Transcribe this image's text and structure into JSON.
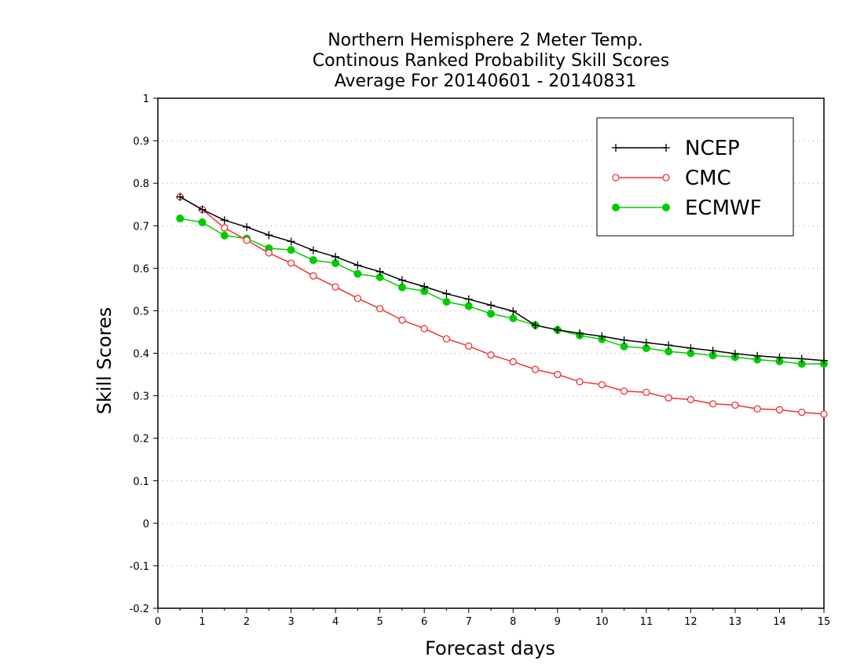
{
  "chart_data": {
    "type": "line",
    "title": [
      "Northern Hemisphere 2 Meter Temp.",
      "Continous Ranked Probability Skill Scores",
      "Average For 20140601 - 20140831"
    ],
    "xlabel": "Forecast days",
    "ylabel": "Skill Scores",
    "xlim": [
      0,
      15
    ],
    "ylim": [
      -0.2,
      1
    ],
    "xticks": [
      0,
      1,
      2,
      3,
      4,
      5,
      6,
      7,
      8,
      9,
      10,
      11,
      12,
      13,
      14,
      15
    ],
    "yticks": [
      -0.2,
      -0.1,
      0,
      0.1,
      0.2,
      0.3,
      0.4,
      0.5,
      0.6,
      0.7,
      0.8,
      0.9,
      1
    ],
    "ytick_labels": [
      "-0.2",
      "-0.1",
      "0",
      "0.1",
      "0.2",
      "0.3",
      "0.4",
      "0.5",
      "0.6",
      "0.7",
      "0.8",
      "0.9",
      "1"
    ],
    "grid": "horizontal dotted",
    "legend_position": "top-right",
    "x": [
      0.5,
      1,
      1.5,
      2,
      2.5,
      3,
      3.5,
      4,
      4.5,
      5,
      5.5,
      6,
      6.5,
      7,
      7.5,
      8,
      8.5,
      9,
      9.5,
      10,
      10.5,
      11,
      11.5,
      12,
      12.5,
      13,
      13.5,
      14,
      14.5,
      15
    ],
    "series": [
      {
        "name": "NCEP",
        "color": "#000000",
        "marker": "plus",
        "values": [
          0.768,
          0.738,
          0.713,
          0.697,
          0.678,
          0.663,
          0.642,
          0.627,
          0.607,
          0.592,
          0.572,
          0.557,
          0.54,
          0.527,
          0.513,
          0.499,
          0.466,
          0.455,
          0.447,
          0.44,
          0.431,
          0.425,
          0.419,
          0.412,
          0.406,
          0.399,
          0.394,
          0.39,
          0.387,
          0.383
        ]
      },
      {
        "name": "CMC",
        "color": "#ee3333",
        "marker": "open-circle",
        "values": [
          0.768,
          0.738,
          0.695,
          0.666,
          0.636,
          0.612,
          0.582,
          0.556,
          0.529,
          0.505,
          0.478,
          0.458,
          0.434,
          0.417,
          0.396,
          0.38,
          0.362,
          0.35,
          0.333,
          0.326,
          0.311,
          0.308,
          0.295,
          0.291,
          0.281,
          0.278,
          0.269,
          0.267,
          0.261,
          0.257
        ]
      },
      {
        "name": "ECMWF",
        "color": "#00cc00",
        "marker": "filled-circle",
        "values": [
          0.717,
          0.708,
          0.677,
          0.67,
          0.647,
          0.643,
          0.619,
          0.612,
          0.587,
          0.579,
          0.555,
          0.546,
          0.521,
          0.511,
          0.493,
          0.482,
          0.466,
          0.455,
          0.442,
          0.433,
          0.416,
          0.412,
          0.404,
          0.4,
          0.395,
          0.391,
          0.385,
          0.381,
          0.375,
          0.375
        ]
      }
    ]
  }
}
